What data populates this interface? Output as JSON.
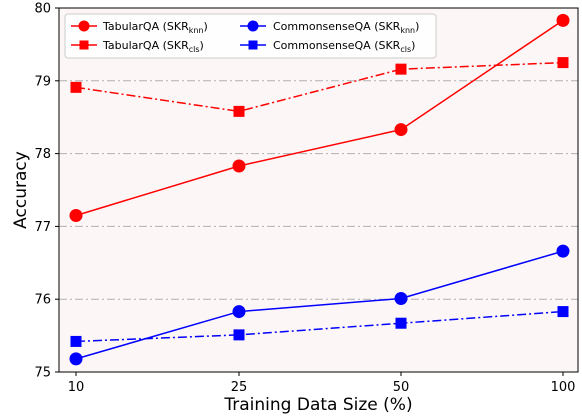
{
  "chart_data": {
    "type": "line",
    "xlabel": "Training Data Size (%)",
    "ylabel": "Accuracy",
    "categories": [
      "10",
      "25",
      "50",
      "100"
    ],
    "ylim": [
      75,
      80
    ],
    "yticks": [
      "75",
      "76",
      "77",
      "78",
      "79",
      "80"
    ],
    "grid": "horizontal dash-dot at 76, 77, 78, 79",
    "legend_placement": "top-left, two columns",
    "background_color": "#fdf6f6",
    "series": [
      {
        "name": "TabularQA (SKR",
        "sub": "knn",
        "name_end": ")",
        "color": "#ff0000",
        "marker": "circle",
        "linestyle": "solid",
        "values": [
          77.15,
          77.83,
          78.33,
          79.83
        ]
      },
      {
        "name": "TabularQA (SKR",
        "sub": "cls",
        "name_end": ")",
        "color": "#ff0000",
        "marker": "square",
        "linestyle": "dashdot",
        "values": [
          78.91,
          78.58,
          79.16,
          79.25
        ]
      },
      {
        "name": "CommonsenseQA (SKR",
        "sub": "knn",
        "name_end": ")",
        "color": "#0000ff",
        "marker": "circle",
        "linestyle": "solid",
        "values": [
          75.18,
          75.83,
          76.01,
          76.66
        ]
      },
      {
        "name": "CommonsenseQA (SKR",
        "sub": "cls",
        "name_end": ")",
        "color": "#0000ff",
        "marker": "square",
        "linestyle": "dashdot",
        "values": [
          75.42,
          75.51,
          75.67,
          75.83
        ]
      }
    ]
  }
}
